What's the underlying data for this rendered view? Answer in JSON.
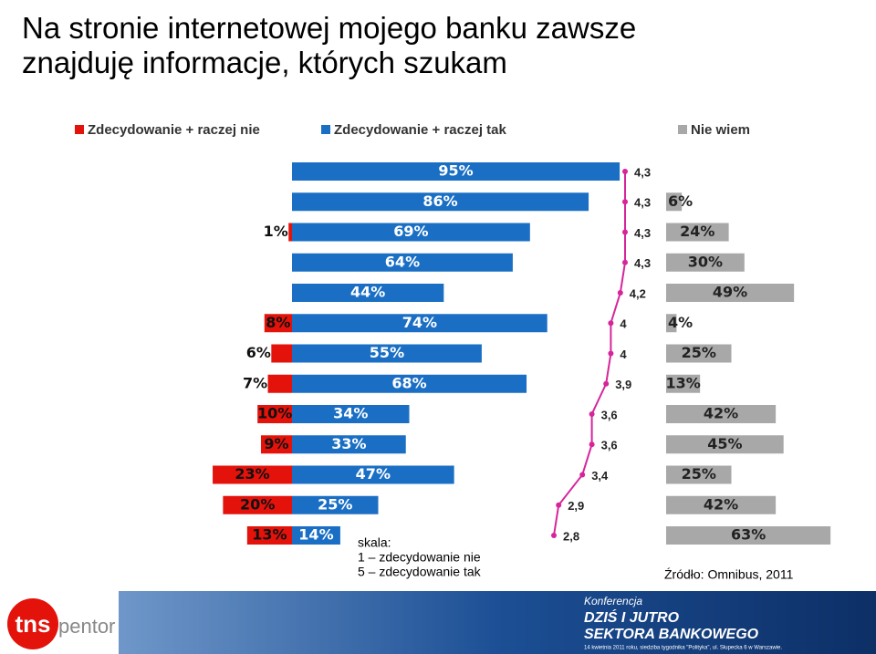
{
  "chart_data": {
    "type": "diverging-bar",
    "title": "Na stronie internetowej mojego banku zawsze znajduję informacje, których szukam",
    "series": [
      {
        "name": "Zdecydowanie + raczej nie",
        "color": "#e3120b",
        "side": "left",
        "values": [
          null,
          null,
          1,
          null,
          null,
          8,
          6,
          7,
          10,
          9,
          23,
          20,
          13
        ],
        "value_labels": [
          null,
          null,
          "1%",
          null,
          null,
          "8%",
          "6%",
          "7%",
          "10%",
          "9%",
          "23%",
          "20%",
          "13%"
        ]
      },
      {
        "name": "Zdecydowanie + raczej tak",
        "color": "#1a6fc4",
        "side": "right",
        "values": [
          95,
          86,
          69,
          64,
          44,
          74,
          55,
          68,
          34,
          33,
          47,
          25,
          14
        ],
        "value_labels": [
          "95%",
          "86%",
          "69%",
          "64%",
          "44%",
          "74%",
          "55%",
          "68%",
          "34%",
          "33%",
          "47%",
          "25%",
          "14%"
        ]
      },
      {
        "color": "#d6259a",
        "type": "line",
        "values": [
          4.3,
          4.3,
          4.3,
          4.3,
          4.2,
          4,
          4,
          3.9,
          3.6,
          3.6,
          3.4,
          2.9,
          2.8
        ],
        "value_labels": [
          "4,3",
          "4,3",
          "4,3",
          "4,3",
          "4,2",
          "4",
          "4",
          "3,9",
          "3,6",
          "3,6",
          "3,4",
          "2,9",
          "2,8"
        ]
      },
      {
        "name": "Nie wiem",
        "color": "#a8a8a8",
        "side": "far",
        "values": [
          null,
          6,
          24,
          30,
          49,
          4,
          25,
          13,
          42,
          45,
          25,
          42,
          63
        ],
        "value_labels": [
          null,
          "6%",
          "24%",
          "30%",
          "49%",
          "4%",
          "25%",
          "13%",
          "42%",
          "45%",
          "25%",
          "42%",
          "63%"
        ]
      }
    ],
    "annotations": [
      "skala:",
      "1 – zdecydowanie nie",
      "5 – zdecydowanie tak"
    ],
    "source": "Źródło: Omnibus, 2011"
  },
  "footer": {
    "logo": [
      "tns",
      "pentor"
    ],
    "banner": [
      "Konferencja",
      "DZIŚ I JUTRO",
      "SEKTORA BANKOWEGO"
    ],
    "banner_note": "14 kwietnia 2011 roku, siedziba tygodnika \"Polityka\", ul. Słupecka 6 w Warszawie."
  }
}
